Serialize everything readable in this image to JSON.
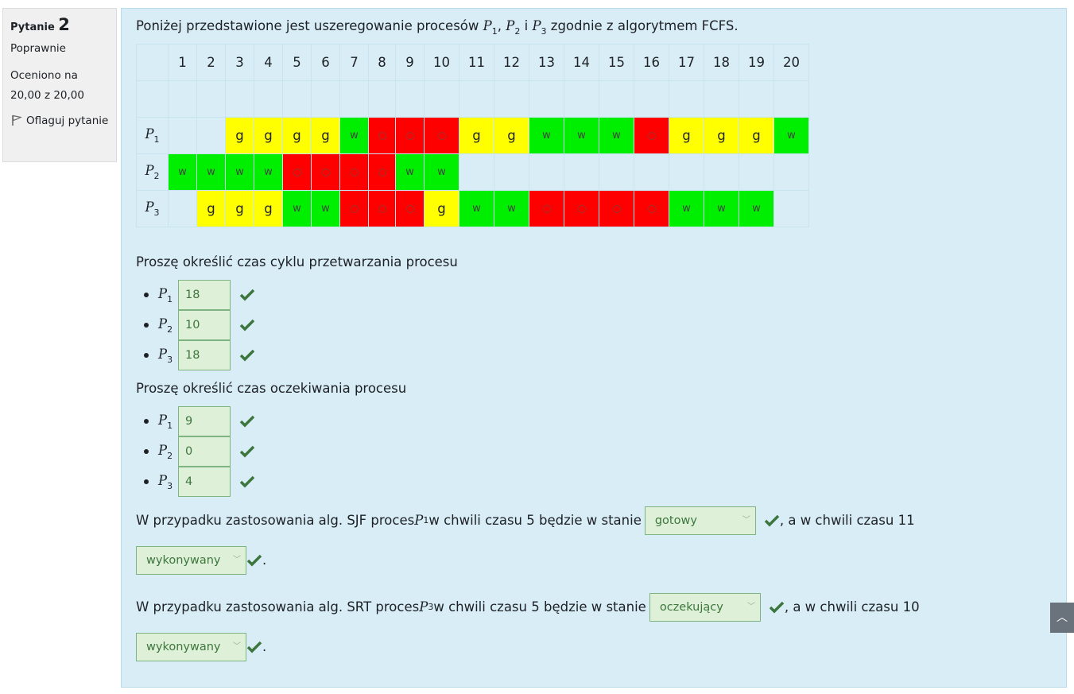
{
  "info": {
    "question_word": "Pytanie",
    "question_number": "2",
    "state": "Poprawnie",
    "grade": "Oceniono na 20,00 z 20,00",
    "flag_label": "Oflaguj pytanie"
  },
  "intro": {
    "before": "Poniżej przedstawione jest uszeregowanie procesów ",
    "sep1": ", ",
    "sep2": " i ",
    "after": " zgodnie z algorytmem FCFS."
  },
  "schedule": {
    "columns": [
      "1",
      "2",
      "3",
      "4",
      "5",
      "6",
      "7",
      "8",
      "9",
      "10",
      "11",
      "12",
      "13",
      "14",
      "15",
      "16",
      "17",
      "18",
      "19",
      "20"
    ],
    "rows": [
      {
        "label": "P",
        "sub": "1",
        "cells": [
          "",
          "",
          "g",
          "g",
          "g",
          "g",
          "w",
          "o",
          "o",
          "o",
          "g",
          "g",
          "w",
          "w",
          "w",
          "o",
          "g",
          "g",
          "g",
          "w"
        ]
      },
      {
        "label": "P",
        "sub": "2",
        "cells": [
          "w",
          "w",
          "w",
          "w",
          "o",
          "o",
          "o",
          "o",
          "w",
          "w",
          "",
          "",
          "",
          "",
          "",
          "",
          "",
          "",
          "",
          ""
        ]
      },
      {
        "label": "P",
        "sub": "3",
        "cells": [
          "",
          "g",
          "g",
          "g",
          "w",
          "w",
          "o",
          "o",
          "o",
          "g",
          "w",
          "w",
          "o",
          "o",
          "o",
          "o",
          "w",
          "w",
          "w",
          ""
        ]
      }
    ]
  },
  "cycle": {
    "question": "Proszę określić czas cyklu przetwarzania procesu",
    "answers": [
      {
        "label": "P",
        "sub": "1",
        "value": "18"
      },
      {
        "label": "P",
        "sub": "2",
        "value": "10"
      },
      {
        "label": "P",
        "sub": "3",
        "value": "18"
      }
    ]
  },
  "wait": {
    "question": "Proszę określić czas oczekiwania procesu",
    "answers": [
      {
        "label": "P",
        "sub": "1",
        "value": "9"
      },
      {
        "label": "P",
        "sub": "2",
        "value": "0"
      },
      {
        "label": "P",
        "sub": "3",
        "value": "4"
      }
    ]
  },
  "sjf": {
    "part1": "W przypadku zastosowania alg. SJF proces ",
    "proc": "P",
    "proc_sub": "1",
    "part2": " w chwili czasu 5 będzie w stanie ",
    "select1": "gotowy",
    "part3": ", a w chwili czasu 11",
    "select2": "wykonywany",
    "end": "."
  },
  "srt": {
    "part1": "W przypadku zastosowania alg. SRT proces ",
    "proc": "P",
    "proc_sub": "3",
    "part2": " w chwili czasu 5 będzie w stanie ",
    "select1": "oczekujący",
    "part3": ", a w chwili czasu 10",
    "select2": "wykonywany",
    "end": "."
  },
  "colors": {
    "ready": "#ffff00",
    "running": "#00ee00",
    "waiting": "#ff0000",
    "panel": "#d9edf7",
    "correct": "#3c763d"
  }
}
